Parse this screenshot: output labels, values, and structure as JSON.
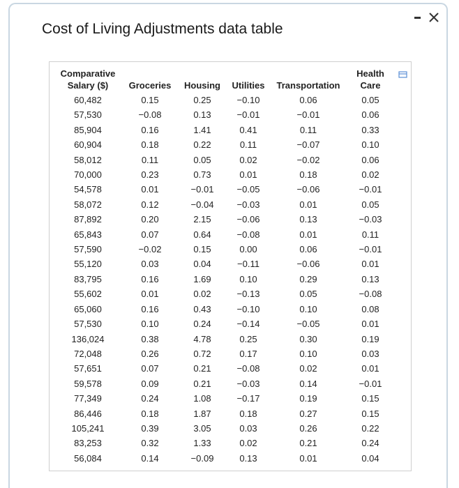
{
  "title": "Cost of Living Adjustments data table",
  "table": {
    "columns": [
      "Comparative Salary ($)",
      "Groceries",
      "Housing",
      "Utilities",
      "Transportation",
      "Health Care"
    ],
    "rows": [
      [
        "60,482",
        "0.15",
        "0.25",
        "−0.10",
        "0.06",
        "0.05"
      ],
      [
        "57,530",
        "−0.08",
        "0.13",
        "−0.01",
        "−0.01",
        "0.06"
      ],
      [
        "85,904",
        "0.16",
        "1.41",
        "0.41",
        "0.11",
        "0.33"
      ],
      [
        "60,904",
        "0.18",
        "0.22",
        "0.11",
        "−0.07",
        "0.10"
      ],
      [
        "58,012",
        "0.11",
        "0.05",
        "0.02",
        "−0.02",
        "0.06"
      ],
      [
        "70,000",
        "0.23",
        "0.73",
        "0.01",
        "0.18",
        "0.02"
      ],
      [
        "54,578",
        "0.01",
        "−0.01",
        "−0.05",
        "−0.06",
        "−0.01"
      ],
      [
        "58,072",
        "0.12",
        "−0.04",
        "−0.03",
        "0.01",
        "0.05"
      ],
      [
        "87,892",
        "0.20",
        "2.15",
        "−0.06",
        "0.13",
        "−0.03"
      ],
      [
        "65,843",
        "0.07",
        "0.64",
        "−0.08",
        "0.01",
        "0.11"
      ],
      [
        "57,590",
        "−0.02",
        "0.15",
        "0.00",
        "0.06",
        "−0.01"
      ],
      [
        "55,120",
        "0.03",
        "0.04",
        "−0.11",
        "−0.06",
        "0.01"
      ],
      [
        "83,795",
        "0.16",
        "1.69",
        "0.10",
        "0.29",
        "0.13"
      ],
      [
        "55,602",
        "0.01",
        "0.02",
        "−0.13",
        "0.05",
        "−0.08"
      ],
      [
        "65,060",
        "0.16",
        "0.43",
        "−0.10",
        "0.10",
        "0.08"
      ],
      [
        "57,530",
        "0.10",
        "0.24",
        "−0.14",
        "−0.05",
        "0.01"
      ],
      [
        "136,024",
        "0.38",
        "4.78",
        "0.25",
        "0.30",
        "0.19"
      ],
      [
        "72,048",
        "0.26",
        "0.72",
        "0.17",
        "0.10",
        "0.03"
      ],
      [
        "57,651",
        "0.07",
        "0.21",
        "−0.08",
        "0.02",
        "0.01"
      ],
      [
        "59,578",
        "0.09",
        "0.21",
        "−0.03",
        "0.14",
        "−0.01"
      ],
      [
        "77,349",
        "0.24",
        "1.08",
        "−0.17",
        "0.19",
        "0.15"
      ],
      [
        "86,446",
        "0.18",
        "1.87",
        "0.18",
        "0.27",
        "0.15"
      ],
      [
        "105,241",
        "0.39",
        "3.05",
        "0.03",
        "0.26",
        "0.22"
      ],
      [
        "83,253",
        "0.32",
        "1.33",
        "0.02",
        "0.21",
        "0.24"
      ],
      [
        "56,084",
        "0.14",
        "−0.09",
        "0.13",
        "0.01",
        "0.04"
      ]
    ]
  }
}
